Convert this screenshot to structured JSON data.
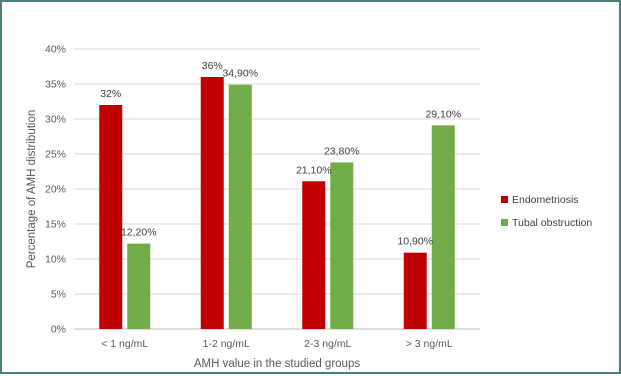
{
  "chart_data": {
    "type": "bar",
    "title": "",
    "xlabel": "AMH value in the studied groups",
    "ylabel": "Percentage of AMH distribution",
    "categories": [
      "< 1 ng/mL",
      "1-2 ng/mL",
      "2-3 ng/mL",
      "> 3 ng/mL"
    ],
    "ylim": [
      0,
      40
    ],
    "yticks": [
      0,
      5,
      10,
      15,
      20,
      25,
      30,
      35,
      40
    ],
    "ytick_labels": [
      "0%",
      "5%",
      "10%",
      "15%",
      "20%",
      "25%",
      "30%",
      "35%",
      "40%"
    ],
    "grid": true,
    "legend_position": "right",
    "series": [
      {
        "name": "Endometriosis",
        "color": "#c00000",
        "values": [
          32,
          36,
          21.1,
          10.9
        ],
        "labels": [
          "32%",
          "36%",
          "21,10%",
          "10,90%"
        ]
      },
      {
        "name": "Tubal obstruction",
        "color": "#70ad47",
        "values": [
          12.2,
          34.9,
          23.8,
          29.1
        ],
        "labels": [
          "12,20%",
          "34,90%",
          "23,80%",
          "29,10%"
        ]
      }
    ]
  }
}
